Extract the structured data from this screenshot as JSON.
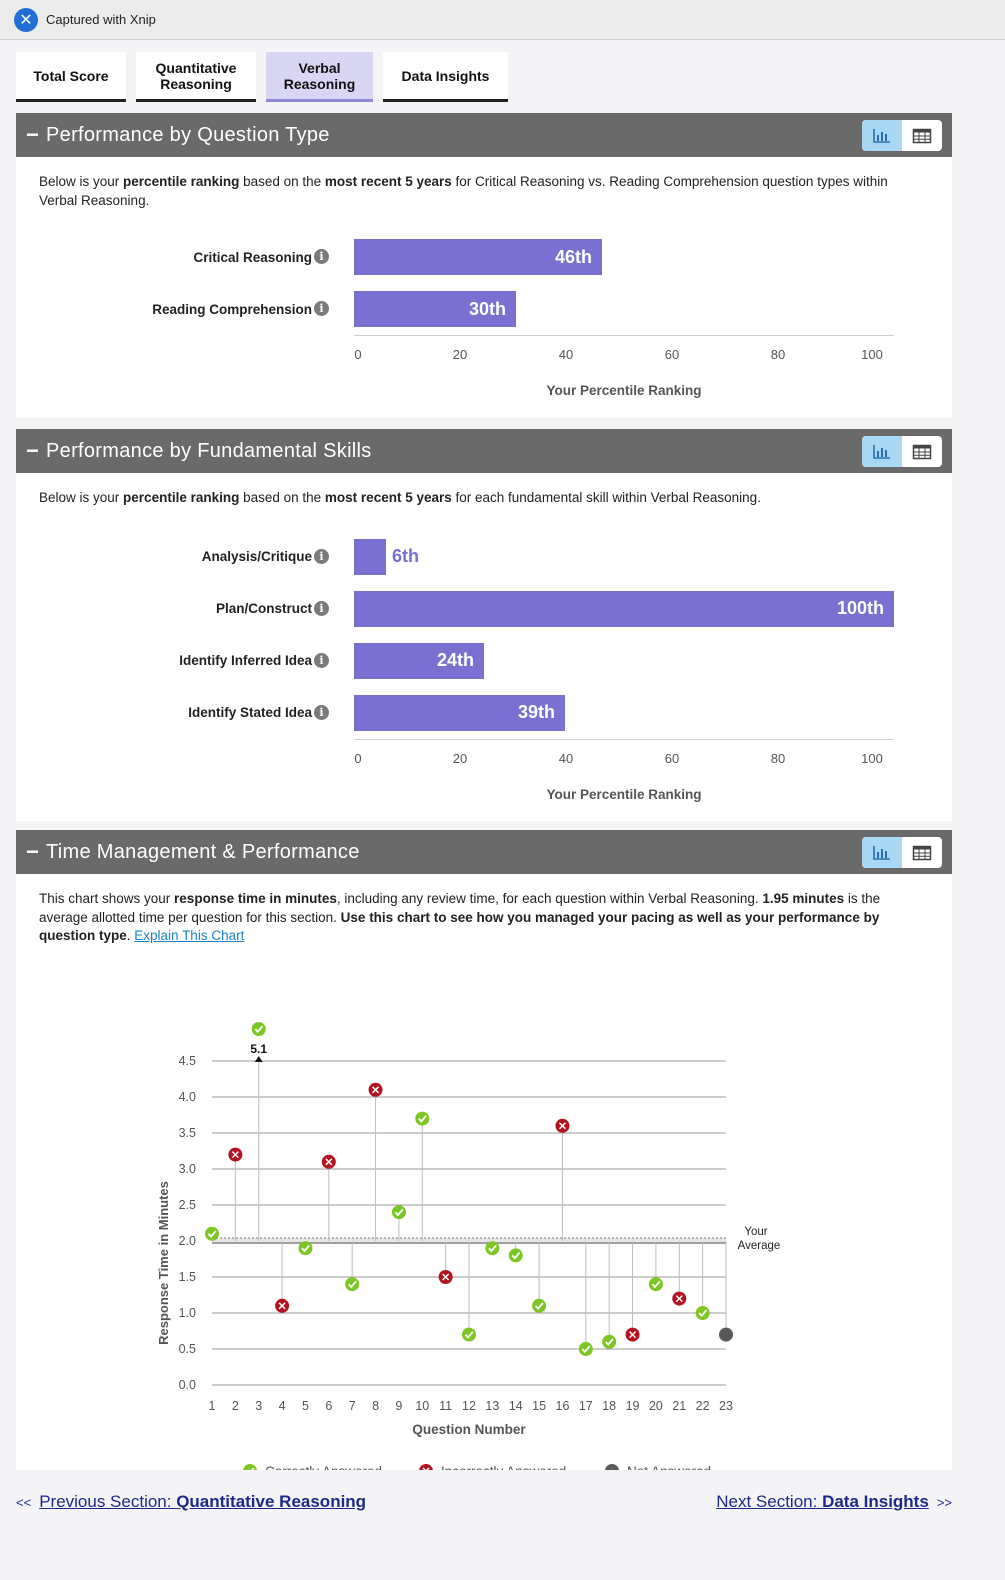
{
  "capture": {
    "text": "Captured with Xnip"
  },
  "tabs": [
    {
      "label": "Total Score"
    },
    {
      "label": "Quantitative Reasoning"
    },
    {
      "label": "Verbal Reasoning"
    },
    {
      "label": "Data Insights"
    }
  ],
  "active_tab": "Verbal Reasoning",
  "colors": {
    "bar": "#7a70d1",
    "correct": "#7cc625",
    "incorrect": "#b3121f",
    "not_answered": "#5a5a5a",
    "header": "#6a6a6a"
  },
  "icons": {
    "chart_toggle": "bar-chart-icon",
    "table_toggle": "table-icon",
    "info": "info-icon"
  },
  "question_type": {
    "title": "Performance by Question Type",
    "intro": [
      {
        "t": "Below is your ",
        "b": false
      },
      {
        "t": "percentile ranking",
        "b": true
      },
      {
        "t": " based on the ",
        "b": false
      },
      {
        "t": "most recent 5 years",
        "b": true
      },
      {
        "t": " for Critical Reasoning vs. Reading Comprehension question types within Verbal Reasoning.",
        "b": false
      }
    ],
    "xlabel": "Your Percentile Ranking",
    "ticks": [
      "0",
      "20",
      "40",
      "60",
      "80",
      "100"
    ],
    "bars": [
      {
        "label": "Critical Reasoning",
        "value": 46,
        "text": "46th"
      },
      {
        "label": "Reading Comprehension",
        "value": 30,
        "text": "30th"
      }
    ]
  },
  "fundamental_skills": {
    "title": "Performance by Fundamental Skills",
    "intro": [
      {
        "t": "Below is your ",
        "b": false
      },
      {
        "t": "percentile ranking",
        "b": true
      },
      {
        "t": " based on the ",
        "b": false
      },
      {
        "t": "most recent 5 years",
        "b": true
      },
      {
        "t": " for each fundamental skill within Verbal Reasoning.",
        "b": false
      }
    ],
    "xlabel": "Your Percentile Ranking",
    "ticks": [
      "0",
      "20",
      "40",
      "60",
      "80",
      "100"
    ],
    "bars": [
      {
        "label": "Analysis/Critique",
        "value": 6,
        "text": "6th"
      },
      {
        "label": "Plan/Construct",
        "value": 100,
        "text": "100th"
      },
      {
        "label": "Identify Inferred Idea",
        "value": 24,
        "text": "24th"
      },
      {
        "label": "Identify Stated Idea",
        "value": 39,
        "text": "39th"
      }
    ]
  },
  "time_management": {
    "title": "Time Management & Performance",
    "intro": [
      {
        "t": "This chart shows your ",
        "b": false
      },
      {
        "t": "response time in minutes",
        "b": true
      },
      {
        "t": ", including any review time, for each question within Verbal Reasoning. ",
        "b": false
      },
      {
        "t": "1.95 minutes",
        "b": true
      },
      {
        "t": " is the average allotted time per question for this section. ",
        "b": false
      },
      {
        "t": "Use this chart to see how you managed your pacing as well as your performance by question type",
        "b": true
      },
      {
        "t": ". ",
        "b": false
      }
    ],
    "explain_link": "Explain This Chart"
  },
  "chart_data": {
    "type": "scatter",
    "xlabel": "Question Number",
    "ylabel": "Response Time in Minutes",
    "ylim": [
      0,
      4.5
    ],
    "yticks": [
      "0.0",
      "0.5",
      "1.0",
      "1.5",
      "2.0",
      "2.5",
      "3.0",
      "3.5",
      "4.0",
      "4.5"
    ],
    "average": 2.0,
    "average_label": "Your Average",
    "overflow_label": "5.1",
    "legend": [
      "Correctly Answered",
      "Incorrectly Answered",
      "Not Answered"
    ],
    "points": [
      {
        "q": 1,
        "t": 2.1,
        "status": "correct"
      },
      {
        "q": 2,
        "t": 3.2,
        "status": "incorrect"
      },
      {
        "q": 3,
        "t": 5.1,
        "status": "correct"
      },
      {
        "q": 4,
        "t": 1.1,
        "status": "incorrect"
      },
      {
        "q": 5,
        "t": 1.9,
        "status": "correct"
      },
      {
        "q": 6,
        "t": 3.1,
        "status": "incorrect"
      },
      {
        "q": 7,
        "t": 1.4,
        "status": "correct"
      },
      {
        "q": 8,
        "t": 4.1,
        "status": "incorrect"
      },
      {
        "q": 9,
        "t": 2.4,
        "status": "correct"
      },
      {
        "q": 10,
        "t": 3.7,
        "status": "correct"
      },
      {
        "q": 11,
        "t": 1.5,
        "status": "incorrect"
      },
      {
        "q": 12,
        "t": 0.7,
        "status": "correct"
      },
      {
        "q": 13,
        "t": 1.9,
        "status": "correct"
      },
      {
        "q": 14,
        "t": 1.8,
        "status": "correct"
      },
      {
        "q": 15,
        "t": 1.1,
        "status": "correct"
      },
      {
        "q": 16,
        "t": 3.6,
        "status": "incorrect"
      },
      {
        "q": 17,
        "t": 0.5,
        "status": "correct"
      },
      {
        "q": 18,
        "t": 0.6,
        "status": "correct"
      },
      {
        "q": 19,
        "t": 0.7,
        "status": "incorrect"
      },
      {
        "q": 20,
        "t": 1.4,
        "status": "correct"
      },
      {
        "q": 21,
        "t": 1.2,
        "status": "incorrect"
      },
      {
        "q": 22,
        "t": 1.0,
        "status": "correct"
      },
      {
        "q": 23,
        "t": 0.7,
        "status": "not_answered"
      }
    ]
  },
  "nav": {
    "prev_prefix": "Previous Section: ",
    "prev_name": "Quantitative Reasoning",
    "next_prefix": "Next Section: ",
    "next_name": "Data Insights",
    "prev_arrows": "<<",
    "next_arrows": ">>"
  }
}
